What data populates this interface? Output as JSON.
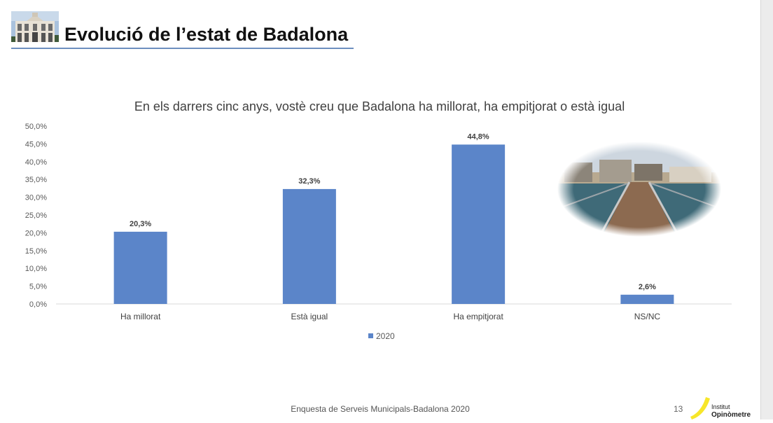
{
  "slide": {
    "title": "Evolució de l’estat de Badalona",
    "footer": "Enquesta de Serveis Municipals-Badalona 2020",
    "page_number": "13",
    "logo": {
      "line1": "Institut",
      "line2": "Opinòmetre"
    },
    "header_image": "badalona-building-thumbnail",
    "photo": "badalona-pier-photo"
  },
  "colors": {
    "bar": "#5b85c9",
    "title_rule": "#6d8fbf",
    "logo_accent": "#f7e62a",
    "gridline": "#d9d9d9"
  },
  "chart_data": {
    "type": "bar",
    "title": "En els darrers cinc anys, vostè creu que Badalona ha millorat, ha empitjorat o està igual",
    "categories": [
      "Ha millorat",
      "Està igual",
      "Ha empitjorat",
      "NS/NC"
    ],
    "series": [
      {
        "name": "2020",
        "values": [
          20.3,
          32.3,
          44.8,
          2.6
        ]
      }
    ],
    "data_labels": [
      "20,3%",
      "32,3%",
      "44,8%",
      "2,6%"
    ],
    "yticks": [
      "0,0%",
      "5,0%",
      "10,0%",
      "15,0%",
      "20,0%",
      "25,0%",
      "30,0%",
      "35,0%",
      "40,0%",
      "45,0%",
      "50,0%"
    ],
    "ylim": [
      0,
      50
    ],
    "ytick_step": 5,
    "xlabel": "",
    "ylabel": "",
    "grid": false,
    "legend": "bottom-center"
  }
}
